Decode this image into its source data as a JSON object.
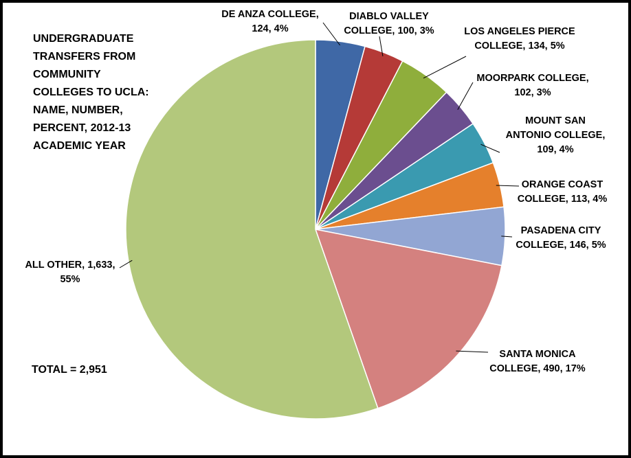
{
  "chart_data": {
    "type": "pie",
    "title_lines": [
      "UNDERGRADUATE",
      "TRANSFERS FROM",
      "COMMUNITY",
      "COLLEGES TO UCLA:",
      "NAME, NUMBER,",
      "PERCENT, 2012-13",
      "ACADEMIC YEAR"
    ],
    "total_label": "TOTAL = 2,951",
    "slices": [
      {
        "label": "DE ANZA COLLEGE",
        "value": 124,
        "percent": "4%",
        "color": "#3F68A6",
        "label_lines": [
          "DE ANZA COLLEGE,",
          "124, 4%"
        ]
      },
      {
        "label": "DIABLO VALLEY COLLEGE",
        "value": 100,
        "percent": "3%",
        "color": "#B53A37",
        "label_lines": [
          "DIABLO VALLEY",
          "COLLEGE, 100, 3%"
        ]
      },
      {
        "label": "LOS ANGELES PIERCE COLLEGE",
        "value": 134,
        "percent": "5%",
        "color": "#8FAE3C",
        "label_lines": [
          "LOS ANGELES PIERCE",
          "COLLEGE, 134, 5%"
        ]
      },
      {
        "label": "MOORPARK COLLEGE",
        "value": 102,
        "percent": "3%",
        "color": "#6B4E8F",
        "label_lines": [
          "MOORPARK COLLEGE,",
          "102, 3%"
        ]
      },
      {
        "label": "MOUNT SAN ANTONIO COLLEGE",
        "value": 109,
        "percent": "4%",
        "color": "#3A9AB0",
        "label_lines": [
          "MOUNT SAN",
          "ANTONIO COLLEGE,",
          "109, 4%"
        ]
      },
      {
        "label": "ORANGE COAST COLLEGE",
        "value": 113,
        "percent": "4%",
        "color": "#E5802C",
        "label_lines": [
          "ORANGE COAST",
          "COLLEGE, 113, 4%"
        ]
      },
      {
        "label": "PASADENA CITY COLLEGE",
        "value": 146,
        "percent": "5%",
        "color": "#92A6D3",
        "label_lines": [
          "PASADENA CITY",
          "COLLEGE, 146, 5%"
        ]
      },
      {
        "label": "SANTA MONICA COLLEGE",
        "value": 490,
        "percent": "17%",
        "color": "#D4817F",
        "label_lines": [
          "SANTA MONICA",
          "COLLEGE, 490, 17%"
        ]
      },
      {
        "label": "ALL OTHER",
        "value": 1633,
        "percent": "55%",
        "color": "#B3C87C",
        "label_lines": [
          "ALL OTHER, 1,633,",
          "55%"
        ]
      }
    ],
    "start_angle_deg": 0,
    "direction": "clockwise",
    "legend": "none",
    "data_labels": "outside with leader lines"
  }
}
